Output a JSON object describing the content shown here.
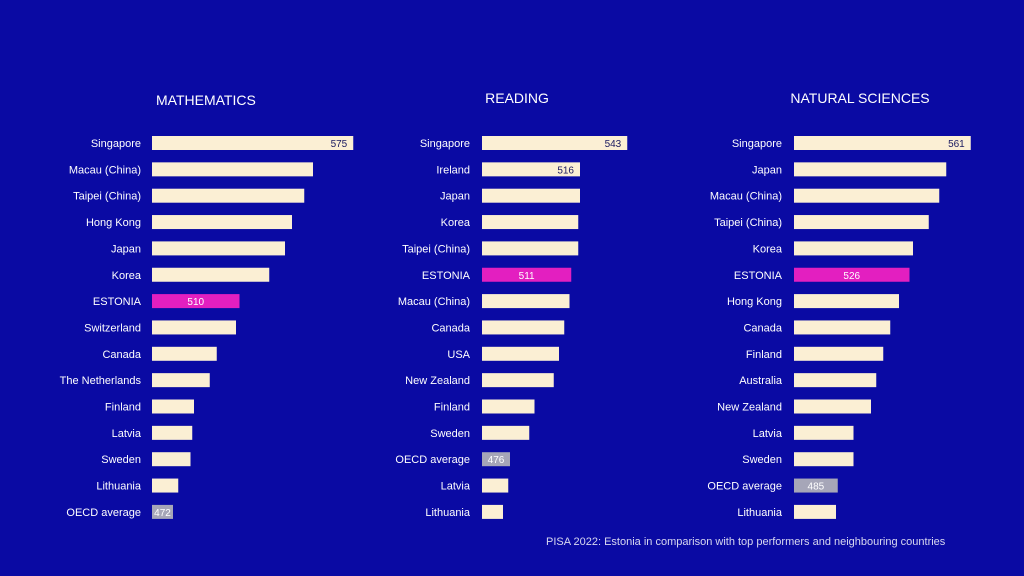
{
  "footnote": "PISA 2022: Estonia in comparison with top performers and neighbouring countries",
  "colors": {
    "background": "#0a0aa3",
    "bar": "#fbefd4",
    "estonia": "#e31fc0",
    "oecd": "#a6a6b8",
    "text": "#ffffff",
    "label_on_bar": "#1a1a60"
  },
  "chart_data": [
    {
      "type": "bar",
      "orientation": "horizontal",
      "title": "MATHEMATICS",
      "categories": [
        "Singapore",
        "Macau (China)",
        "Taipei (China)",
        "Hong Kong",
        "Japan",
        "Korea",
        "ESTONIA",
        "Switzerland",
        "Canada",
        "The Netherlands",
        "Finland",
        "Latvia",
        "Sweden",
        "Lithuania",
        "OECD average"
      ],
      "values": [
        575,
        552,
        547,
        540,
        536,
        527,
        510,
        508,
        497,
        493,
        484,
        483,
        482,
        475,
        472
      ],
      "labeled_values": {
        "Singapore": "575",
        "ESTONIA": "510",
        "OECD average": "472"
      }
    },
    {
      "type": "bar",
      "orientation": "horizontal",
      "title": "READING",
      "categories": [
        "Singapore",
        "Ireland",
        "Japan",
        "Korea",
        "Taipei (China)",
        "ESTONIA",
        "Macau (China)",
        "Canada",
        "USA",
        "New Zealand",
        "Finland",
        "Sweden",
        "OECD average",
        "Latvia",
        "Lithuania"
      ],
      "values": [
        543,
        516,
        516,
        515,
        515,
        511,
        510,
        507,
        504,
        501,
        490,
        487,
        476,
        475,
        472
      ],
      "labeled_values": {
        "Singapore": "543",
        "Ireland": "516",
        "ESTONIA": "511",
        "OECD average": "476"
      }
    },
    {
      "type": "bar",
      "orientation": "horizontal",
      "title": "NATURAL SCIENCES",
      "categories": [
        "Singapore",
        "Japan",
        "Macau (China)",
        "Taipei (China)",
        "Korea",
        "ESTONIA",
        "Hong Kong",
        "Canada",
        "Finland",
        "Australia",
        "New Zealand",
        "Latvia",
        "Sweden",
        "OECD average",
        "Lithuania"
      ],
      "values": [
        561,
        547,
        543,
        537,
        528,
        526,
        520,
        515,
        511,
        507,
        504,
        494,
        494,
        485,
        484
      ],
      "labeled_values": {
        "Singapore": "561",
        "ESTONIA": "526",
        "OECD average": "485"
      }
    }
  ]
}
